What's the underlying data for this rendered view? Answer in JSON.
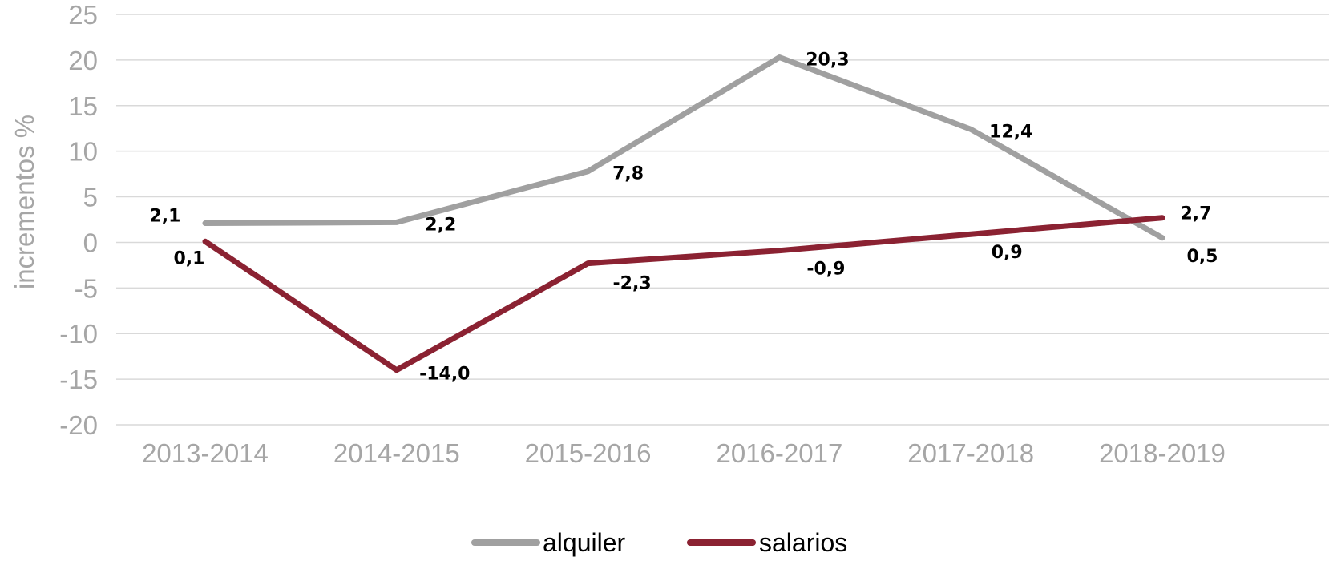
{
  "chart_data": {
    "type": "line",
    "title": "",
    "xlabel": "",
    "ylabel": "incrementos %",
    "ylim": [
      -20,
      25
    ],
    "yticks": [
      25,
      20,
      15,
      10,
      5,
      0,
      -5,
      -10,
      -15,
      -20
    ],
    "grid": true,
    "legend_position": "bottom",
    "categories": [
      "2013-2014",
      "2014-2015",
      "2015-2016",
      "2016-2017",
      "2017-2018",
      "2018-2019"
    ],
    "series": [
      {
        "name": "alquiler",
        "color": "#a0a0a0",
        "values": [
          2.1,
          2.2,
          7.8,
          20.3,
          12.4,
          0.5
        ],
        "labels": [
          "2,1",
          "2,2",
          "7,8",
          "20,3",
          "12,4",
          "0,5"
        ]
      },
      {
        "name": "salarios",
        "color": "#8b2232",
        "values": [
          0.1,
          -14.0,
          -2.3,
          -0.9,
          0.9,
          2.7
        ],
        "labels": [
          "0,1",
          "-14,0",
          "-2,3",
          "-0,9",
          "0,9",
          "2,7"
        ]
      }
    ]
  },
  "colors": {
    "alquiler": "#a0a0a0",
    "salarios": "#8b2232",
    "grid": "#d9d9d9",
    "axis_text": "#a6a6a6"
  },
  "legend": {
    "items": [
      {
        "label": "alquiler"
      },
      {
        "label": "salarios"
      }
    ]
  }
}
